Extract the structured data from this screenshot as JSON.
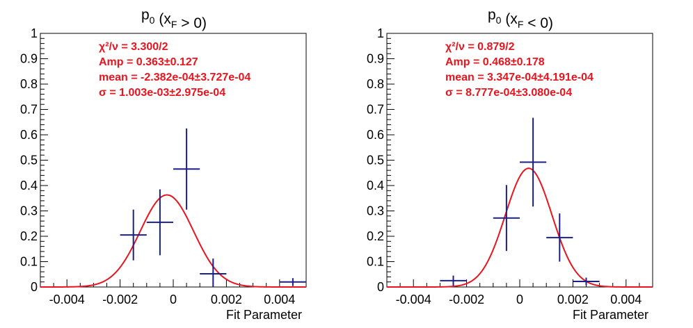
{
  "colors": {
    "data_points": "#1a1f8a",
    "fit_curve": "#e8141e",
    "stats_text": "#e8141e",
    "frame": "#000000"
  },
  "chart_data": [
    {
      "type": "scatter",
      "title": "p0 (xF > 0)",
      "xlabel": "Fit Parameter",
      "ylabel": "",
      "xlim": [
        -0.005,
        0.005
      ],
      "ylim": [
        0,
        1
      ],
      "x_ticks": [
        -0.004,
        -0.002,
        0,
        0.002,
        0.004
      ],
      "x_tick_labels": [
        "-0.004",
        "-0.002",
        "0",
        "0.002",
        "0.004"
      ],
      "y_ticks": [
        0,
        0.1,
        0.2,
        0.3,
        0.4,
        0.5,
        0.6,
        0.7,
        0.8,
        0.9,
        1
      ],
      "y_tick_labels": [
        "0",
        "0.1",
        "0.2",
        "0.3",
        "0.4",
        "0.5",
        "0.6",
        "0.7",
        "0.8",
        "0.9",
        "1"
      ],
      "points": [
        {
          "x": -0.0015,
          "y": 0.205,
          "xerr": 0.0005,
          "yerr": 0.1
        },
        {
          "x": -0.0005,
          "y": 0.255,
          "xerr": 0.0005,
          "yerr": 0.13
        },
        {
          "x": 0.0005,
          "y": 0.465,
          "xerr": 0.0005,
          "yerr": 0.16
        },
        {
          "x": 0.0015,
          "y": 0.052,
          "xerr": 0.0005,
          "yerr": 0.06
        },
        {
          "x": 0.0045,
          "y": 0.02,
          "xerr": 0.0005,
          "yerr": 0.015
        }
      ],
      "fit": {
        "function": "gaussian",
        "amp": 0.363,
        "mean": -0.0002382,
        "sigma": 0.001003
      },
      "stats": [
        "χ²/ν = 3.300/2",
        "Amp = 0.363±0.127",
        "mean = -2.382e-04±3.727e-04",
        "σ = 1.003e-03±2.975e-04"
      ]
    },
    {
      "type": "scatter",
      "title": "p0 (xF < 0)",
      "xlabel": "Fit Parameter",
      "ylabel": "",
      "xlim": [
        -0.005,
        0.005
      ],
      "ylim": [
        0,
        1
      ],
      "x_ticks": [
        -0.004,
        -0.002,
        0,
        0.002,
        0.004
      ],
      "x_tick_labels": [
        "-0.004",
        "-0.002",
        "0",
        "0.002",
        "0.004"
      ],
      "y_ticks": [
        0,
        0.1,
        0.2,
        0.3,
        0.4,
        0.5,
        0.6,
        0.7,
        0.8,
        0.9,
        1
      ],
      "y_tick_labels": [
        "0",
        "0.1",
        "0.2",
        "0.3",
        "0.4",
        "0.5",
        "0.6",
        "0.7",
        "0.8",
        "0.9",
        "1"
      ],
      "points": [
        {
          "x": -0.0025,
          "y": 0.025,
          "xerr": 0.0005,
          "yerr": 0.02
        },
        {
          "x": -0.0005,
          "y": 0.272,
          "xerr": 0.0005,
          "yerr": 0.13
        },
        {
          "x": 0.0005,
          "y": 0.492,
          "xerr": 0.0005,
          "yerr": 0.175
        },
        {
          "x": 0.0015,
          "y": 0.195,
          "xerr": 0.0005,
          "yerr": 0.095
        },
        {
          "x": 0.0025,
          "y": 0.022,
          "xerr": 0.0005,
          "yerr": 0.015
        }
      ],
      "fit": {
        "function": "gaussian",
        "amp": 0.468,
        "mean": 0.0003347,
        "sigma": 0.0008777
      },
      "stats": [
        "χ²/ν = 0.879/2",
        "Amp = 0.468±0.178",
        "mean = 3.347e-04±4.191e-04",
        "σ = 8.777e-04±3.080e-04"
      ]
    }
  ]
}
